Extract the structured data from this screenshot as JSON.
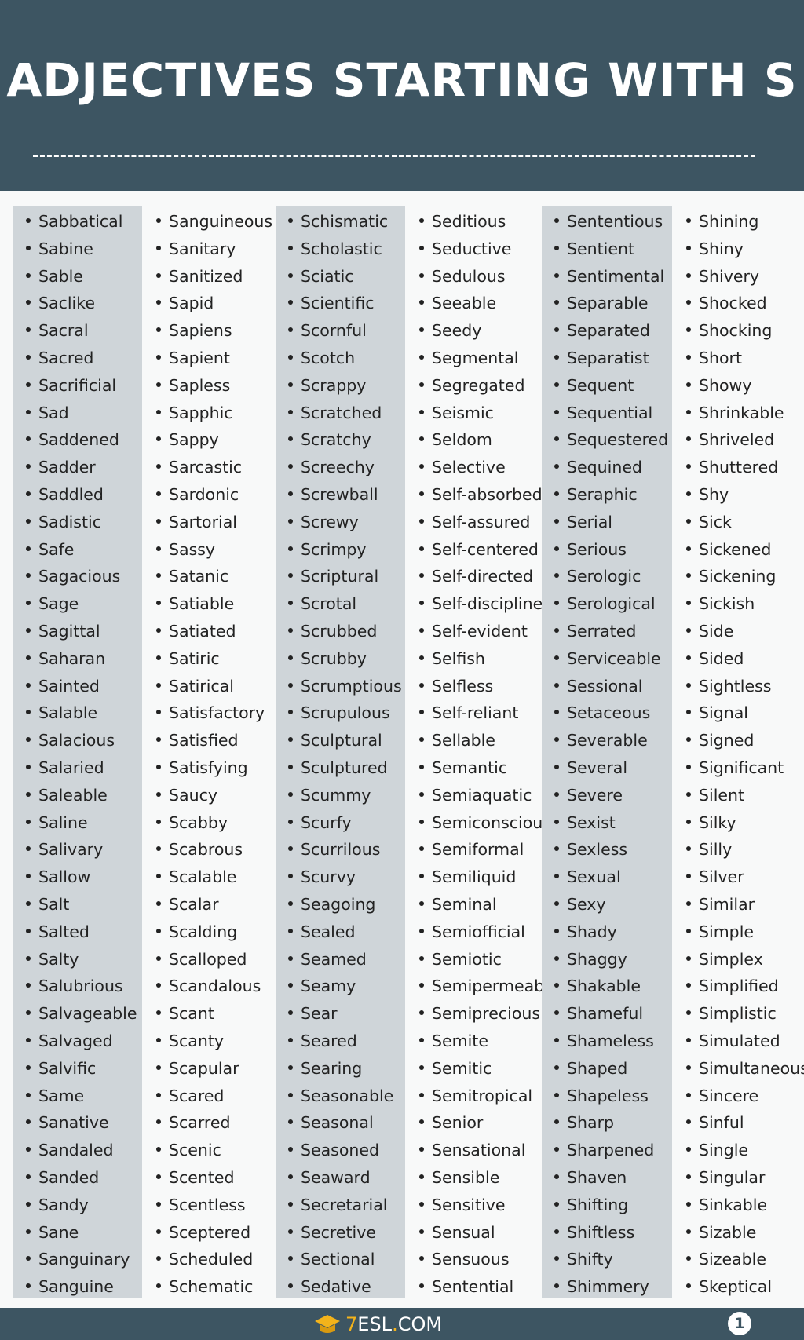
{
  "header": {
    "title": "ADJECTIVES STARTING WITH S"
  },
  "colors": {
    "header_bg": "#3d5562",
    "column_shade": "#cfd5d9",
    "logo_accent": "#f3b31b"
  },
  "columns": [
    [
      "Sabbatical",
      "Sabine",
      "Sable",
      "Saclike",
      "Sacral",
      "Sacred",
      "Sacrificial",
      "Sad",
      "Saddened",
      "Sadder",
      "Saddled",
      "Sadistic",
      "Safe",
      "Sagacious",
      "Sage",
      "Sagittal",
      "Saharan",
      "Sainted",
      "Salable",
      "Salacious",
      "Salaried",
      "Saleable",
      "Saline",
      "Salivary",
      "Sallow",
      "Salt",
      "Salted",
      "Salty",
      "Salubrious",
      "Salvageable",
      "Salvaged",
      "Salvific",
      "Same",
      "Sanative",
      "Sandaled",
      "Sanded",
      "Sandy",
      "Sane",
      "Sanguinary",
      "Sanguine"
    ],
    [
      "Sanguineous",
      "Sanitary",
      "Sanitized",
      "Sapid",
      "Sapiens",
      "Sapient",
      "Sapless",
      "Sapphic",
      "Sappy",
      "Sarcastic",
      "Sardonic",
      "Sartorial",
      "Sassy",
      "Satanic",
      "Satiable",
      "Satiated",
      "Satiric",
      "Satirical",
      "Satisfactory",
      "Satisfied",
      "Satisfying",
      "Saucy",
      "Scabby",
      "Scabrous",
      "Scalable",
      "Scalar",
      "Scalding",
      "Scalloped",
      "Scandalous",
      "Scant",
      "Scanty",
      "Scapular",
      "Scared",
      "Scarred",
      "Scenic",
      "Scented",
      "Scentless",
      "Sceptered",
      "Scheduled",
      "Schematic"
    ],
    [
      "Schismatic",
      "Scholastic",
      "Sciatic",
      "Scientific",
      "Scornful",
      "Scotch",
      "Scrappy",
      "Scratched",
      "Scratchy",
      "Screechy",
      "Screwball",
      "Screwy",
      "Scrimpy",
      "Scriptural",
      "Scrotal",
      "Scrubbed",
      "Scrubby",
      "Scrumptious",
      "Scrupulous",
      "Sculptural",
      "Sculptured",
      "Scummy",
      "Scurfy",
      "Scurrilous",
      "Scurvy",
      "Seagoing",
      "Sealed",
      "Seamed",
      "Seamy",
      "Sear",
      "Seared",
      "Searing",
      "Seasonable",
      "Seasonal",
      "Seasoned",
      "Seaward",
      "Secretarial",
      "Secretive",
      "Sectional",
      "Sedative"
    ],
    [
      "Seditious",
      "Seductive",
      "Sedulous",
      "Seeable",
      "Seedy",
      "Segmental",
      "Segregated",
      "Seismic",
      "Seldom",
      "Selective",
      "Self-absorbed",
      "Self-assured",
      "Self-centered",
      "Self-directed",
      "Self-disciplined",
      "Self-evident",
      "Selfish",
      "Selfless",
      "Self-reliant",
      "Sellable",
      "Semantic",
      "Semiaquatic",
      "Semiconscious",
      "Semiformal",
      "Semiliquid",
      "Seminal",
      "Semiofficial",
      "Semiotic",
      "Semipermeable",
      "Semiprecious",
      "Semite",
      "Semitic",
      "Semitropical",
      "Senior",
      "Sensational",
      "Sensible",
      "Sensitive",
      "Sensual",
      "Sensuous",
      "Sentential"
    ],
    [
      "Sententious",
      "Sentient",
      "Sentimental",
      "Separable",
      "Separated",
      "Separatist",
      "Sequent",
      "Sequential",
      "Sequestered",
      "Sequined",
      "Seraphic",
      "Serial",
      "Serious",
      "Serologic",
      "Serological",
      "Serrated",
      "Serviceable",
      "Sessional",
      "Setaceous",
      "Severable",
      "Several",
      "Severe",
      "Sexist",
      "Sexless",
      "Sexual",
      "Sexy",
      "Shady",
      "Shaggy",
      "Shakable",
      "Shameful",
      "Shameless",
      "Shaped",
      "Shapeless",
      "Sharp",
      "Sharpened",
      "Shaven",
      "Shifting",
      "Shiftless",
      "Shifty",
      "Shimmery"
    ],
    [
      "Shining",
      "Shiny",
      "Shivery",
      "Shocked",
      "Shocking",
      "Short",
      "Showy",
      "Shrinkable",
      "Shriveled",
      "Shuttered",
      "Shy",
      "Sick",
      "Sickened",
      "Sickening",
      "Sickish",
      "Side",
      "Sided",
      "Sightless",
      "Signal",
      "Signed",
      "Significant",
      "Silent",
      "Silky",
      "Silly",
      "Silver",
      "Similar",
      "Simple",
      "Simplex",
      "Simplified",
      "Simplistic",
      "Simulated",
      "Simultaneous",
      "Sincere",
      "Sinful",
      "Single",
      "Singular",
      "Sinkable",
      "Sizable",
      "Sizeable",
      "Skeptical"
    ]
  ],
  "footer": {
    "logo_prefix": "7",
    "logo_text": "ESL",
    "logo_dot": ".",
    "logo_suffix": "COM",
    "page_number": "1"
  }
}
